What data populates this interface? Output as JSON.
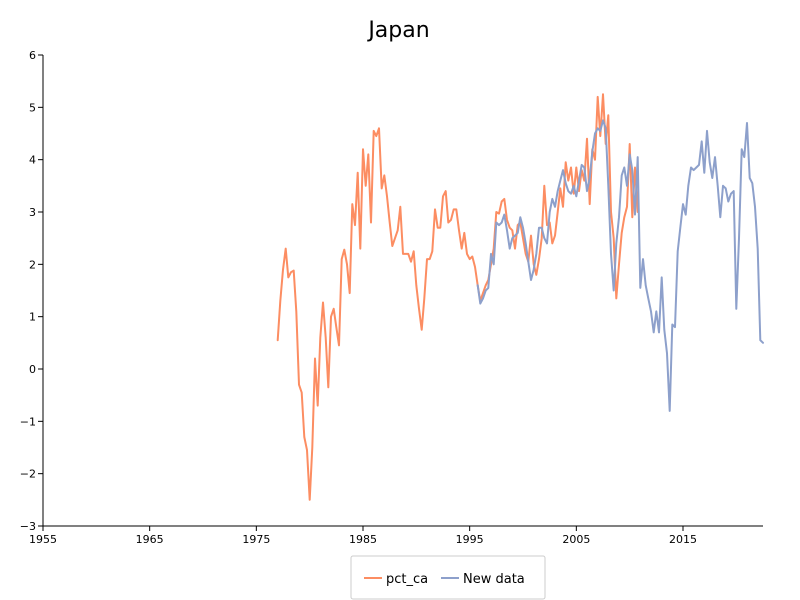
{
  "chart_data": {
    "type": "line",
    "title": "Japan",
    "xlabel": "",
    "ylabel": "",
    "xlim": [
      1955,
      2022.5
    ],
    "ylim": [
      -3,
      6
    ],
    "x_ticks": [
      1955,
      1965,
      1975,
      1985,
      1995,
      2005,
      2015
    ],
    "y_ticks": [
      -3,
      -2,
      -1,
      0,
      1,
      2,
      3,
      4,
      5,
      6
    ],
    "grid": false,
    "legend_position": "bottom-center",
    "series": [
      {
        "name": "pct_ca",
        "color": "#fc8d62",
        "x": [
          1977.0,
          1977.25,
          1977.5,
          1977.75,
          1978.0,
          1978.25,
          1978.5,
          1978.75,
          1979.0,
          1979.25,
          1979.5,
          1979.75,
          1980.0,
          1980.25,
          1980.5,
          1980.75,
          1981.0,
          1981.25,
          1981.5,
          1981.75,
          1982.0,
          1982.25,
          1982.5,
          1982.75,
          1983.0,
          1983.25,
          1983.5,
          1983.75,
          1984.0,
          1984.25,
          1984.5,
          1984.75,
          1985.0,
          1985.25,
          1985.5,
          1985.75,
          1986.0,
          1986.25,
          1986.5,
          1986.75,
          1987.0,
          1987.25,
          1987.5,
          1987.75,
          1988.0,
          1988.25,
          1988.5,
          1988.75,
          1989.0,
          1989.25,
          1989.5,
          1989.75,
          1990.0,
          1990.25,
          1990.5,
          1990.75,
          1991.0,
          1991.25,
          1991.5,
          1991.75,
          1992.0,
          1992.25,
          1992.5,
          1992.75,
          1993.0,
          1993.25,
          1993.5,
          1993.75,
          1994.0,
          1994.25,
          1994.5,
          1994.75,
          1995.0,
          1995.25,
          1995.5,
          1995.75,
          1996.0,
          1996.25,
          1996.5,
          1996.75,
          1997.0,
          1997.25,
          1997.5,
          1997.75,
          1998.0,
          1998.25,
          1998.5,
          1998.75,
          1999.0,
          1999.25,
          1999.5,
          1999.75,
          2000.0,
          2000.25,
          2000.5,
          2000.75,
          2001.0,
          2001.25,
          2001.5,
          2001.75,
          2002.0,
          2002.25,
          2002.5,
          2002.75,
          2003.0,
          2003.25,
          2003.5,
          2003.75,
          2004.0,
          2004.25,
          2004.5,
          2004.75,
          2005.0,
          2005.25,
          2005.5,
          2005.75,
          2006.0,
          2006.25,
          2006.5,
          2006.75,
          2007.0,
          2007.25,
          2007.5,
          2007.75,
          2008.0,
          2008.25,
          2008.5,
          2008.75,
          2009.0,
          2009.25,
          2009.5,
          2009.75,
          2010.0,
          2010.25,
          2010.5,
          2010.75
        ],
        "values": [
          0.55,
          1.3,
          1.9,
          2.3,
          1.75,
          1.85,
          1.88,
          1.1,
          -0.3,
          -0.45,
          -1.3,
          -1.55,
          -2.5,
          -1.5,
          0.2,
          -0.7,
          0.6,
          1.27,
          0.6,
          -0.35,
          1.0,
          1.15,
          0.8,
          0.45,
          2.1,
          2.28,
          2.0,
          1.45,
          3.15,
          2.75,
          3.75,
          2.3,
          4.2,
          3.5,
          4.1,
          2.8,
          4.55,
          4.45,
          4.6,
          3.45,
          3.7,
          3.3,
          2.8,
          2.35,
          2.5,
          2.65,
          3.1,
          2.2,
          2.2,
          2.2,
          2.05,
          2.25,
          1.6,
          1.15,
          0.75,
          1.35,
          2.1,
          2.1,
          2.25,
          3.05,
          2.7,
          2.7,
          3.3,
          3.4,
          2.8,
          2.85,
          3.05,
          3.05,
          2.65,
          2.3,
          2.6,
          2.2,
          2.1,
          2.15,
          1.95,
          1.6,
          1.3,
          1.45,
          1.6,
          1.7,
          2.0,
          2.3,
          3.0,
          2.97,
          3.2,
          3.25,
          2.85,
          2.7,
          2.65,
          2.3,
          2.75,
          2.8,
          2.5,
          2.2,
          2.05,
          2.55,
          2.0,
          1.8,
          2.1,
          2.5,
          3.5,
          2.75,
          2.8,
          2.4,
          2.55,
          3.0,
          3.45,
          3.1,
          3.95,
          3.6,
          3.85,
          3.35,
          3.85,
          3.4,
          3.8,
          3.6,
          4.4,
          3.15,
          4.2,
          4.0,
          5.2,
          4.45,
          5.25,
          4.3,
          4.85,
          3.0,
          2.5,
          1.35,
          2.0,
          2.6,
          2.9,
          3.1,
          4.3,
          2.9,
          3.85,
          3.0
        ]
      },
      {
        "name": "New data",
        "color": "#8da0cb",
        "x": [
          1995.75,
          1996.0,
          1996.25,
          1996.5,
          1996.75,
          1997.0,
          1997.25,
          1997.5,
          1997.75,
          1998.0,
          1998.25,
          1998.5,
          1998.75,
          1999.0,
          1999.25,
          1999.5,
          1999.75,
          2000.0,
          2000.25,
          2000.5,
          2000.75,
          2001.0,
          2001.25,
          2001.5,
          2001.75,
          2002.0,
          2002.25,
          2002.5,
          2002.75,
          2003.0,
          2003.25,
          2003.5,
          2003.75,
          2004.0,
          2004.25,
          2004.5,
          2004.75,
          2005.0,
          2005.25,
          2005.5,
          2005.75,
          2006.0,
          2006.25,
          2006.5,
          2006.75,
          2007.0,
          2007.25,
          2007.5,
          2007.75,
          2008.0,
          2008.25,
          2008.5,
          2008.75,
          2009.0,
          2009.25,
          2009.5,
          2009.75,
          2010.0,
          2010.25,
          2010.5,
          2010.75,
          2011.0,
          2011.25,
          2011.5,
          2011.75,
          2012.0,
          2012.25,
          2012.5,
          2012.75,
          2013.0,
          2013.25,
          2013.5,
          2013.75,
          2014.0,
          2014.25,
          2014.5,
          2014.75,
          2015.0,
          2015.25,
          2015.5,
          2015.75,
          2016.0,
          2016.25,
          2016.5,
          2016.75,
          2017.0,
          2017.25,
          2017.5,
          2017.75,
          2018.0,
          2018.25,
          2018.5,
          2018.75,
          2019.0,
          2019.25,
          2019.5,
          2019.75,
          2020.0,
          2020.25,
          2020.5,
          2020.75,
          2021.0,
          2021.25,
          2021.5,
          2021.75,
          2022.0,
          2022.25,
          2022.5
        ],
        "values": [
          1.6,
          1.25,
          1.35,
          1.5,
          1.55,
          2.2,
          2.0,
          2.8,
          2.75,
          2.8,
          2.95,
          2.65,
          2.3,
          2.5,
          2.55,
          2.6,
          2.9,
          2.7,
          2.4,
          2.05,
          1.7,
          1.9,
          2.2,
          2.7,
          2.7,
          2.5,
          2.4,
          3.0,
          3.25,
          3.1,
          3.4,
          3.6,
          3.8,
          3.55,
          3.4,
          3.35,
          3.5,
          3.3,
          3.6,
          3.9,
          3.85,
          3.4,
          3.65,
          4.15,
          4.5,
          4.6,
          4.55,
          4.75,
          4.6,
          3.5,
          2.2,
          1.5,
          2.4,
          2.9,
          3.7,
          3.85,
          3.5,
          4.1,
          3.8,
          2.95,
          4.05,
          1.55,
          2.1,
          1.6,
          1.35,
          1.1,
          0.7,
          1.1,
          0.7,
          1.75,
          0.75,
          0.3,
          -0.8,
          0.85,
          0.8,
          2.25,
          2.7,
          3.15,
          2.95,
          3.5,
          3.85,
          3.8,
          3.85,
          3.9,
          4.35,
          3.75,
          4.55,
          3.95,
          3.65,
          4.05,
          3.5,
          2.9,
          3.5,
          3.45,
          3.2,
          3.35,
          3.4,
          1.15,
          2.5,
          4.2,
          4.05,
          4.7,
          3.65,
          3.55,
          3.1,
          2.3,
          0.55,
          0.5
        ]
      }
    ]
  }
}
